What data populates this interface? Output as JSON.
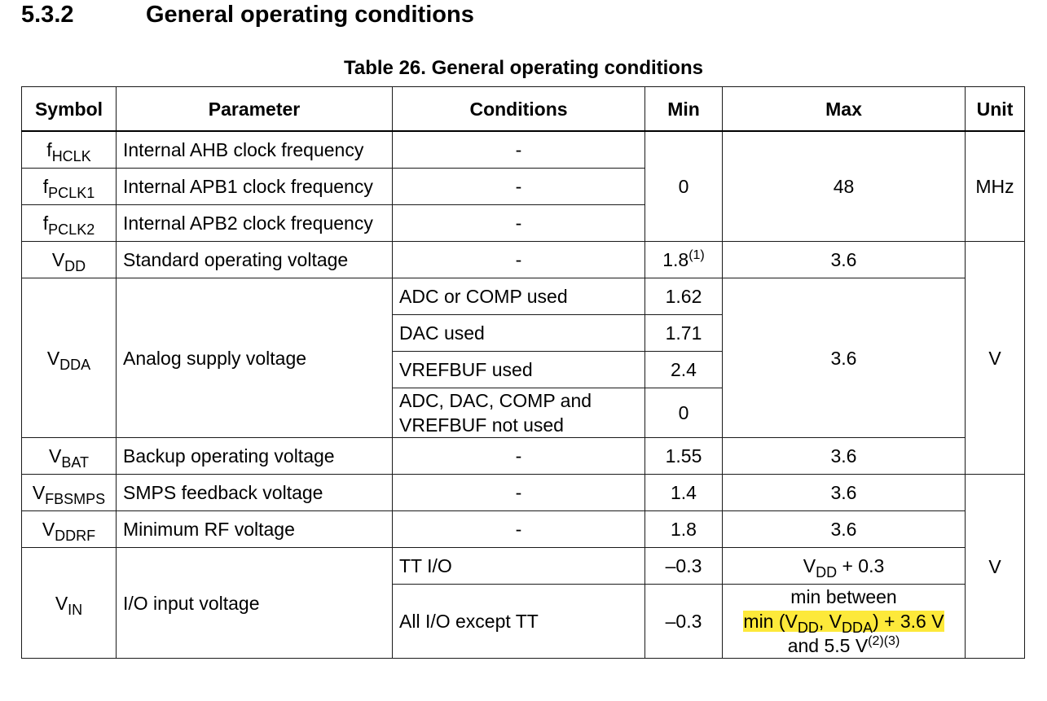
{
  "section": {
    "number": "5.3.2",
    "title": "General operating conditions"
  },
  "caption": "Table 26. General operating conditions",
  "headers": {
    "symbol": "Symbol",
    "parameter": "Parameter",
    "conditions": "Conditions",
    "min": "Min",
    "max": "Max",
    "unit": "Unit"
  },
  "rows": [
    {
      "sym": "f",
      "sub": "HCLK",
      "param": "Internal AHB clock frequency",
      "cond": "-"
    },
    {
      "sym": "f",
      "sub": "PCLK1",
      "param": "Internal APB1 clock frequency",
      "cond": "-"
    },
    {
      "sym": "f",
      "sub": "PCLK2",
      "param": "Internal APB2 clock frequency",
      "cond": "-"
    },
    {
      "sym": "V",
      "sub": "DD",
      "param": "Standard operating voltage",
      "cond": "-",
      "min": "1.8",
      "min_note": "(1)",
      "max": "3.6"
    },
    {
      "sym": "V",
      "sub": "DDA",
      "param": "Analog supply voltage"
    },
    {
      "sym": "V",
      "sub": "BAT",
      "param": "Backup operating voltage",
      "cond": "-",
      "min": "1.55",
      "max": "3.6"
    },
    {
      "sym": "V",
      "sub": "FBSMPS",
      "param": "SMPS feedback voltage",
      "cond": "-",
      "min": "1.4",
      "max": "3.6"
    },
    {
      "sym": "V",
      "sub": "DDRF",
      "param": "Minimum RF voltage",
      "cond": "-",
      "min": "1.8",
      "max": "3.6"
    },
    {
      "sym": "V",
      "sub": "IN",
      "param": "I/O input voltage"
    }
  ],
  "clock_group": {
    "min": "0",
    "max": "48",
    "unit": "MHz"
  },
  "vdda": {
    "conds": [
      {
        "cond": "ADC or COMP used",
        "min": "1.62"
      },
      {
        "cond": "DAC used",
        "min": "1.71"
      },
      {
        "cond": "VREFBUF used",
        "min": "2.4"
      },
      {
        "cond_l1": "ADC, DAC, COMP and",
        "cond_l2": "VREFBUF not used",
        "min": "0"
      }
    ],
    "max": "3.6"
  },
  "unit_v1": "V",
  "unit_v2": "V",
  "vin": {
    "tt_cond": "TT I/O",
    "tt_min": "–0.3",
    "tt_max_a": "V",
    "tt_max_sub": "DD",
    "tt_max_b": " + 0.3",
    "other_cond": "All I/O except TT",
    "other_min": "–0.3",
    "max_l1": "min between",
    "max_l2_a": "min (V",
    "max_l2_sub1": "DD",
    "max_l2_b": ", V",
    "max_l2_sub2": "DDA",
    "max_l2_c": ") + 3.6 V",
    "max_l3_a": "and 5.5 V",
    "max_l3_note": "(2)(3)"
  },
  "highlight_color": "#fde93a"
}
